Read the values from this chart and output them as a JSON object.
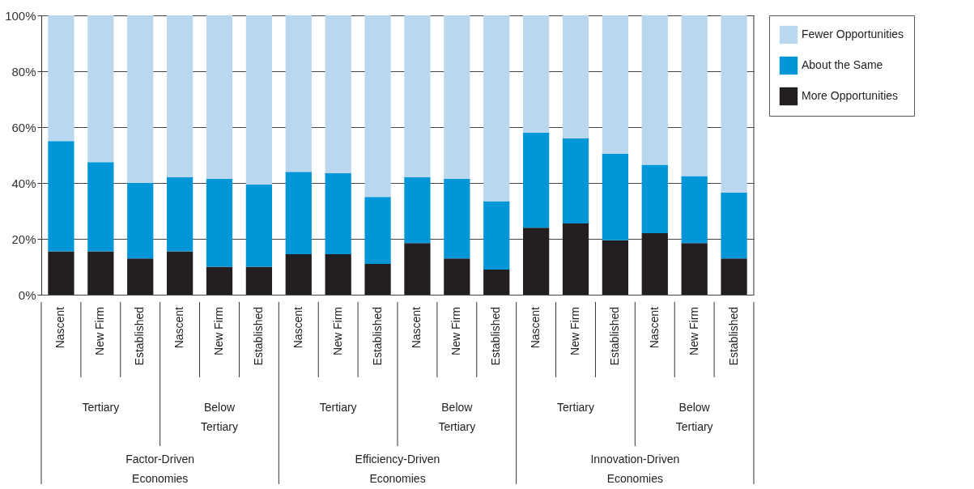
{
  "chart_data": {
    "type": "bar",
    "stacked": true,
    "categories": [
      "Nascent",
      "New Firm",
      "Established",
      "Nascent",
      "New Firm",
      "Established",
      "Nascent",
      "New Firm",
      "Established",
      "Nascent",
      "New Firm",
      "Established",
      "Nascent",
      "New Firm",
      "Established",
      "Nascent",
      "New Firm",
      "Established"
    ],
    "series": [
      {
        "name": "More Opportunities",
        "color": "#231f20",
        "values": [
          15.5,
          15.5,
          13,
          15.5,
          10,
          10,
          14.5,
          14.5,
          11,
          18.5,
          13,
          9,
          24,
          25.5,
          19.5,
          22,
          18.5,
          13
        ]
      },
      {
        "name": "About the Same",
        "color": "#0096d8",
        "values": [
          39.5,
          32,
          27,
          26.5,
          31.5,
          29.5,
          29.5,
          29,
          24,
          23.5,
          28.5,
          24.5,
          34,
          30.5,
          31,
          24.5,
          24,
          23.5
        ]
      },
      {
        "name": "Fewer Opportunities",
        "color": "#b9d7ef",
        "values": [
          45,
          52.5,
          60,
          58,
          58.5,
          60.5,
          56,
          56.5,
          65,
          58,
          58.5,
          66.5,
          42,
          44,
          49.5,
          53.5,
          57.5,
          63.5
        ]
      }
    ],
    "annotations": [
      "Tertiary",
      "Below Tertiary",
      "Tertiary",
      "Below Tertiary",
      "Tertiary",
      "Below Tertiary",
      "Factor-Driven Economies",
      "Efficiency-Driven Economies",
      "Innovation-Driven Economies"
    ],
    "ylim": [
      0,
      100
    ],
    "yticks": [
      {
        "value": 0,
        "label": "0%"
      },
      {
        "value": 20,
        "label": "20%"
      },
      {
        "value": 40,
        "label": "40%"
      },
      {
        "value": 60,
        "label": "60%"
      },
      {
        "value": 80,
        "label": "80%"
      },
      {
        "value": 100,
        "label": "100%"
      }
    ],
    "grid": "y",
    "legend": "right"
  }
}
